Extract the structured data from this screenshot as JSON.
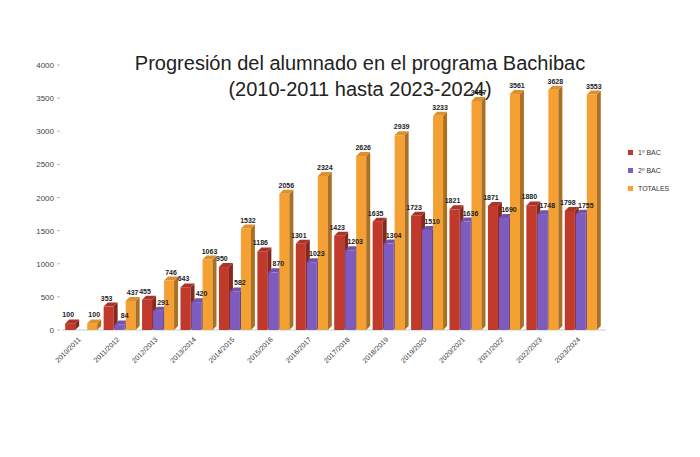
{
  "chart_data": {
    "type": "bar",
    "title": "Progresión del alumnado en el programa Bachibac",
    "subtitle": "(2010-2011 hasta 2023-2024)",
    "categories": [
      "2010/2011",
      "2011/2012",
      "2012/2013",
      "2013/2014",
      "2014/2015",
      "2015/2016",
      "2016/2017",
      "2017/2018",
      "2018/2019",
      "2019/2020",
      "2020/2021",
      "2021/2022",
      "2022/2023",
      "2023/2024"
    ],
    "series": [
      {
        "name": "1º BAC",
        "color": "#c0392b",
        "values": [
          100,
          353,
          455,
          643,
          950,
          1186,
          1301,
          1423,
          1635,
          1723,
          1821,
          1871,
          1880,
          1798
        ]
      },
      {
        "name": "2º BAC",
        "color": "#7e5bbf",
        "values": [
          null,
          84,
          291,
          420,
          582,
          870,
          1023,
          1203,
          1304,
          1510,
          1636,
          1690,
          1748,
          1755
        ]
      },
      {
        "name": "TOTALES",
        "color": "#f5a033",
        "values": [
          100,
          437,
          746,
          1063,
          1532,
          2056,
          2324,
          2626,
          2939,
          3233,
          3457,
          3561,
          3628,
          3553
        ]
      }
    ],
    "ylim": [
      0,
      4000
    ],
    "yticks": [
      0,
      500,
      1000,
      1500,
      2000,
      2500,
      3000,
      3500,
      4000
    ],
    "grid": false,
    "legend": "right",
    "data_labels": true
  }
}
